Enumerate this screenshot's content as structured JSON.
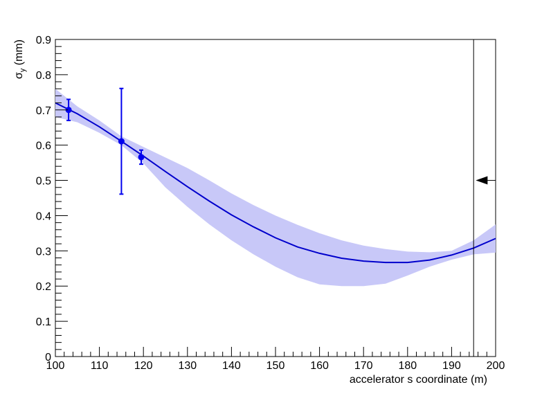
{
  "chart_data": {
    "type": "line",
    "xlabel": "accelerator s coordinate (m)",
    "ylabel": {
      "base": "σ",
      "subscript": "y",
      "rest": " (mm)"
    },
    "xlim": [
      100,
      200
    ],
    "ylim": [
      0,
      0.9
    ],
    "x_ticks": [
      100,
      110,
      120,
      130,
      140,
      150,
      160,
      170,
      180,
      190,
      200
    ],
    "y_ticks": [
      0,
      0.1,
      0.2,
      0.3,
      0.4,
      0.5,
      0.6,
      0.7,
      0.8,
      0.9
    ],
    "grid": false,
    "colors": {
      "fit": "#0000cc",
      "band": "#c8c8f8",
      "points": "#0000ee",
      "marker": "#000000"
    },
    "fit_curve": {
      "x": [
        100,
        105,
        110,
        115,
        120,
        125,
        130,
        135,
        140,
        145,
        150,
        155,
        160,
        165,
        170,
        175,
        180,
        185,
        190,
        195,
        200
      ],
      "y": [
        0.72,
        0.689,
        0.652,
        0.611,
        0.569,
        0.525,
        0.482,
        0.441,
        0.402,
        0.368,
        0.337,
        0.311,
        0.293,
        0.279,
        0.271,
        0.267,
        0.267,
        0.274,
        0.288,
        0.308,
        0.335
      ]
    },
    "band": {
      "x": [
        100,
        105,
        110,
        115,
        120,
        125,
        130,
        135,
        140,
        145,
        150,
        155,
        160,
        165,
        170,
        175,
        180,
        185,
        190,
        195,
        200
      ],
      "upper": [
        0.76,
        0.71,
        0.67,
        0.625,
        0.595,
        0.565,
        0.535,
        0.5,
        0.463,
        0.43,
        0.4,
        0.374,
        0.35,
        0.33,
        0.315,
        0.305,
        0.298,
        0.296,
        0.3,
        0.33,
        0.375
      ],
      "lower": [
        0.68,
        0.665,
        0.635,
        0.6,
        0.548,
        0.48,
        0.425,
        0.375,
        0.33,
        0.29,
        0.255,
        0.225,
        0.205,
        0.2,
        0.2,
        0.207,
        0.23,
        0.255,
        0.275,
        0.29,
        0.295
      ]
    },
    "points": [
      {
        "x": 103,
        "y": 0.7,
        "err": 0.03
      },
      {
        "x": 115,
        "y": 0.611,
        "err": 0.15
      },
      {
        "x": 119.5,
        "y": 0.566,
        "err": 0.02
      }
    ],
    "marker_line_x": 195,
    "arrow": {
      "x_from": 200,
      "x_to": 195.5,
      "y": 0.5
    }
  }
}
